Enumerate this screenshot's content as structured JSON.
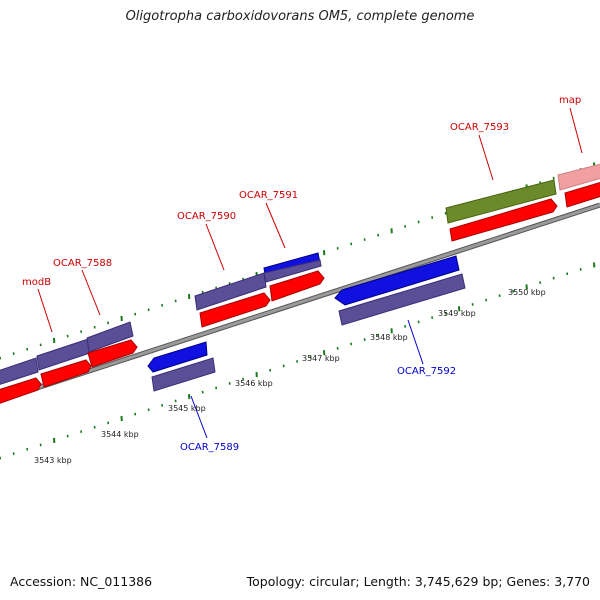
{
  "title": "Oligotropha carboxidovorans OM5, complete genome",
  "footer": {
    "accession": "Accession: NC_011386",
    "topology": "Topology: circular; Length: 3,745,629 bp; Genes: 3,770"
  },
  "colors": {
    "backbone": "#808080",
    "cds_forward": "#5a4e96",
    "cds_reverse": "#ff0000",
    "cds_blue": "#1010e0",
    "cds_green": "#6b8a2a",
    "cds_pink": "#f0a0a0",
    "label_red": "#cc0000",
    "label_blue": "#0000cc",
    "tick": "#1a7a1a"
  },
  "scale_labels": [
    "3543 kbp",
    "3544 kbp",
    "3545 kbp",
    "3546 kbp",
    "3547 kbp",
    "3548 kbp",
    "3549 kbp",
    "3550 kbp"
  ],
  "gene_labels": {
    "modB": "modB",
    "ocar7588": "OCAR_7588",
    "ocar7589": "OCAR_7589",
    "ocar7590": "OCAR_7590",
    "ocar7591": "OCAR_7591",
    "ocar7592": "OCAR_7592",
    "ocar7593": "OCAR_7593",
    "map": "map"
  }
}
